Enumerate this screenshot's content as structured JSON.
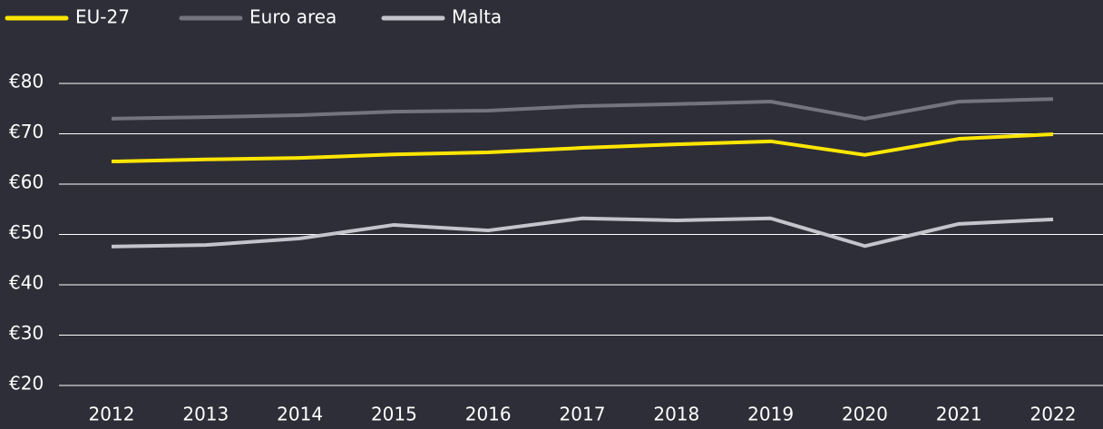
{
  "chart_data": {
    "type": "line",
    "categories": [
      "2012",
      "2013",
      "2014",
      "2015",
      "2016",
      "2017",
      "2018",
      "2019",
      "2020",
      "2021",
      "2022"
    ],
    "series": [
      {
        "name": "EU-27",
        "color": "#ffe600",
        "values": [
          64.5,
          64.9,
          65.2,
          65.9,
          66.3,
          67.2,
          67.9,
          68.5,
          65.8,
          69.0,
          69.9
        ]
      },
      {
        "name": "Euro area",
        "color": "#747480",
        "values": [
          73.0,
          73.3,
          73.7,
          74.4,
          74.6,
          75.5,
          75.9,
          76.4,
          73.0,
          76.4,
          76.9
        ]
      },
      {
        "name": "Malta",
        "color": "#c4c4cd",
        "values": [
          47.6,
          47.9,
          49.2,
          51.9,
          50.8,
          53.2,
          52.8,
          53.2,
          47.7,
          52.1,
          53.0
        ]
      }
    ],
    "ylim": [
      20,
      80
    ],
    "yticks": [
      {
        "value": 20,
        "label": "€20"
      },
      {
        "value": 30,
        "label": "€30"
      },
      {
        "value": 40,
        "label": "€40"
      },
      {
        "value": 50,
        "label": "€50"
      },
      {
        "value": 60,
        "label": "€60"
      },
      {
        "value": 70,
        "label": "€70"
      },
      {
        "value": 80,
        "label": "€80"
      }
    ],
    "grid": true,
    "legend": "top-left"
  }
}
